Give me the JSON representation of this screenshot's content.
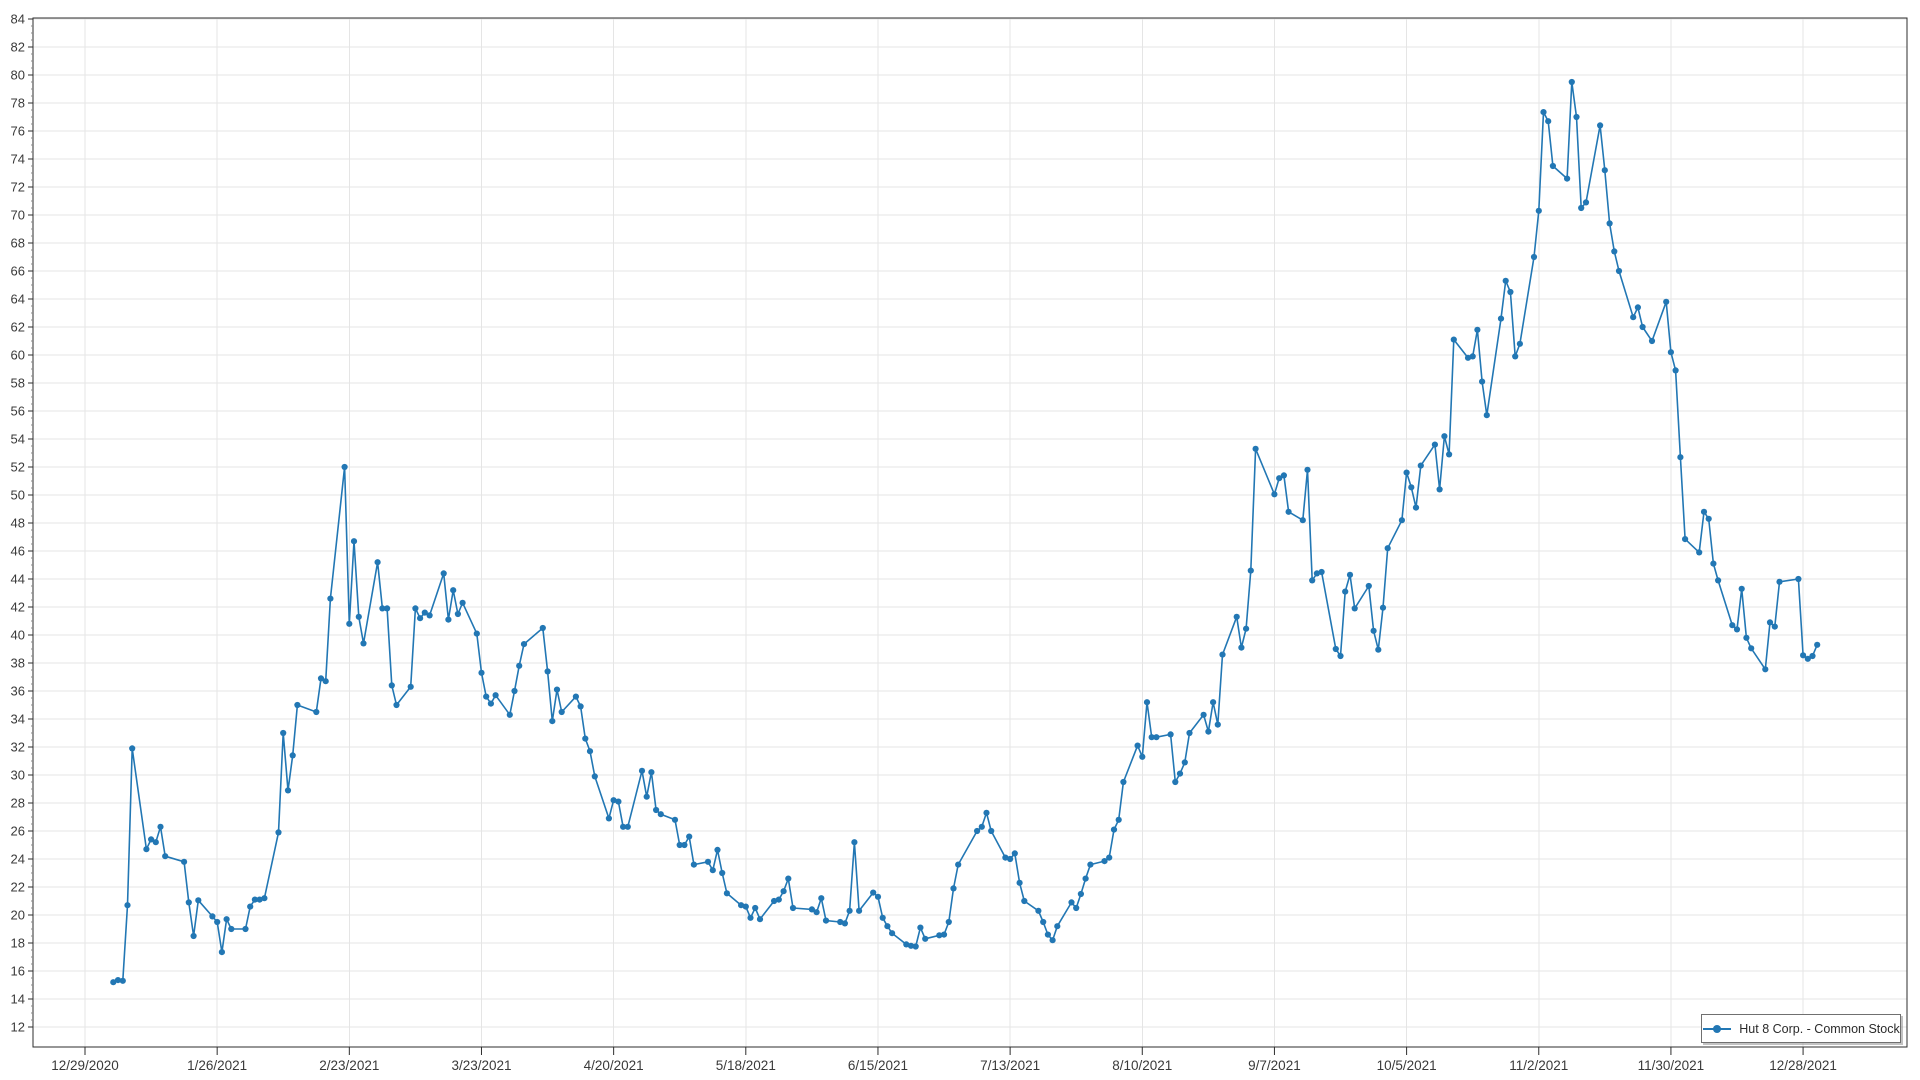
{
  "page": {
    "background_color": "#ffffff",
    "title": ""
  },
  "colors": {
    "series_blue": "#2277b4",
    "grid_line": "#e5e5e5",
    "axis_line": "#2d2d2d",
    "tick_label": "#3a3a3a"
  },
  "legend": {
    "label": "Hut 8 Corp. - Common Stock"
  },
  "chart_data": {
    "type": "line",
    "title": "",
    "xlabel": "",
    "ylabel": "",
    "legend_position": "bottom-right",
    "grid": true,
    "marker": "circle",
    "y_axis": {
      "min": 12,
      "max": 84,
      "step": 2,
      "minor_step": 0.5
    },
    "x_ticks": [
      "12/29/2020",
      "1/26/2021",
      "2/23/2021",
      "3/23/2021",
      "4/20/2021",
      "5/18/2021",
      "6/15/2021",
      "7/13/2021",
      "8/10/2021",
      "9/7/2021",
      "10/5/2021",
      "11/2/2021",
      "11/30/2021",
      "12/28/2021"
    ],
    "x_axis_start": "2020-12-29",
    "x_tick_interval_days": 28,
    "series": [
      {
        "name": "Hut 8 Corp. - Common Stock",
        "color": "#2277b4",
        "points": [
          [
            "2021-01-04",
            15.2
          ],
          [
            "2021-01-05",
            15.35
          ],
          [
            "2021-01-06",
            15.3
          ],
          [
            "2021-01-07",
            20.7
          ],
          [
            "2021-01-08",
            31.9
          ],
          [
            "2021-01-11",
            24.7
          ],
          [
            "2021-01-12",
            25.4
          ],
          [
            "2021-01-13",
            25.2
          ],
          [
            "2021-01-14",
            26.3
          ],
          [
            "2021-01-15",
            24.2
          ],
          [
            "2021-01-19",
            23.8
          ],
          [
            "2021-01-20",
            20.9
          ],
          [
            "2021-01-21",
            18.5
          ],
          [
            "2021-01-22",
            21.05
          ],
          [
            "2021-01-25",
            19.9
          ],
          [
            "2021-01-26",
            19.5
          ],
          [
            "2021-01-27",
            17.35
          ],
          [
            "2021-01-28",
            19.7
          ],
          [
            "2021-01-29",
            19.0
          ],
          [
            "2021-02-01",
            19.0
          ],
          [
            "2021-02-02",
            20.6
          ],
          [
            "2021-02-03",
            21.1
          ],
          [
            "2021-02-04",
            21.1
          ],
          [
            "2021-02-05",
            21.2
          ],
          [
            "2021-02-08",
            25.9
          ],
          [
            "2021-02-09",
            33.0
          ],
          [
            "2021-02-10",
            28.9
          ],
          [
            "2021-02-11",
            31.4
          ],
          [
            "2021-02-12",
            35.0
          ],
          [
            "2021-02-16",
            34.5
          ],
          [
            "2021-02-17",
            36.9
          ],
          [
            "2021-02-18",
            36.7
          ],
          [
            "2021-02-19",
            42.6
          ],
          [
            "2021-02-22",
            52.0
          ],
          [
            "2021-02-23",
            40.8
          ],
          [
            "2021-02-24",
            46.7
          ],
          [
            "2021-02-25",
            41.3
          ],
          [
            "2021-02-26",
            39.4
          ],
          [
            "2021-03-01",
            45.2
          ],
          [
            "2021-03-02",
            41.9
          ],
          [
            "2021-03-03",
            41.9
          ],
          [
            "2021-03-04",
            36.4
          ],
          [
            "2021-03-05",
            35.0
          ],
          [
            "2021-03-08",
            36.3
          ],
          [
            "2021-03-09",
            41.9
          ],
          [
            "2021-03-10",
            41.2
          ],
          [
            "2021-03-11",
            41.6
          ],
          [
            "2021-03-12",
            41.4
          ],
          [
            "2021-03-15",
            44.4
          ],
          [
            "2021-03-16",
            41.1
          ],
          [
            "2021-03-17",
            43.2
          ],
          [
            "2021-03-18",
            41.5
          ],
          [
            "2021-03-19",
            42.3
          ],
          [
            "2021-03-22",
            40.1
          ],
          [
            "2021-03-23",
            37.3
          ],
          [
            "2021-03-24",
            35.6
          ],
          [
            "2021-03-25",
            35.1
          ],
          [
            "2021-03-26",
            35.7
          ],
          [
            "2021-03-29",
            34.3
          ],
          [
            "2021-03-30",
            36.0
          ],
          [
            "2021-03-31",
            37.8
          ],
          [
            "2021-04-01",
            39.35
          ],
          [
            "2021-04-05",
            40.5
          ],
          [
            "2021-04-06",
            37.4
          ],
          [
            "2021-04-07",
            33.85
          ],
          [
            "2021-04-08",
            36.1
          ],
          [
            "2021-04-09",
            34.5
          ],
          [
            "2021-04-12",
            35.6
          ],
          [
            "2021-04-13",
            34.9
          ],
          [
            "2021-04-14",
            32.6
          ],
          [
            "2021-04-15",
            31.7
          ],
          [
            "2021-04-16",
            29.9
          ],
          [
            "2021-04-19",
            26.9
          ],
          [
            "2021-04-20",
            28.2
          ],
          [
            "2021-04-21",
            28.1
          ],
          [
            "2021-04-22",
            26.3
          ],
          [
            "2021-04-23",
            26.3
          ],
          [
            "2021-04-26",
            30.3
          ],
          [
            "2021-04-27",
            28.45
          ],
          [
            "2021-04-28",
            30.2
          ],
          [
            "2021-04-29",
            27.5
          ],
          [
            "2021-04-30",
            27.2
          ],
          [
            "2021-05-03",
            26.8
          ],
          [
            "2021-05-04",
            25.0
          ],
          [
            "2021-05-05",
            25.0
          ],
          [
            "2021-05-06",
            25.6
          ],
          [
            "2021-05-07",
            23.6
          ],
          [
            "2021-05-10",
            23.8
          ],
          [
            "2021-05-11",
            23.2
          ],
          [
            "2021-05-12",
            24.65
          ],
          [
            "2021-05-13",
            23.0
          ],
          [
            "2021-05-14",
            21.55
          ],
          [
            "2021-05-17",
            20.7
          ],
          [
            "2021-05-18",
            20.6
          ],
          [
            "2021-05-19",
            19.8
          ],
          [
            "2021-05-20",
            20.5
          ],
          [
            "2021-05-21",
            19.7
          ],
          [
            "2021-05-24",
            21.0
          ],
          [
            "2021-05-25",
            21.1
          ],
          [
            "2021-05-26",
            21.7
          ],
          [
            "2021-05-27",
            22.6
          ],
          [
            "2021-05-28",
            20.5
          ],
          [
            "2021-06-01",
            20.4
          ],
          [
            "2021-06-02",
            20.2
          ],
          [
            "2021-06-03",
            21.2
          ],
          [
            "2021-06-04",
            19.6
          ],
          [
            "2021-06-07",
            19.5
          ],
          [
            "2021-06-08",
            19.4
          ],
          [
            "2021-06-09",
            20.3
          ],
          [
            "2021-06-10",
            25.2
          ],
          [
            "2021-06-11",
            20.3
          ],
          [
            "2021-06-14",
            21.6
          ],
          [
            "2021-06-15",
            21.3
          ],
          [
            "2021-06-16",
            19.8
          ],
          [
            "2021-06-17",
            19.2
          ],
          [
            "2021-06-18",
            18.7
          ],
          [
            "2021-06-21",
            17.9
          ],
          [
            "2021-06-22",
            17.8
          ],
          [
            "2021-06-23",
            17.75
          ],
          [
            "2021-06-24",
            19.1
          ],
          [
            "2021-06-25",
            18.3
          ],
          [
            "2021-06-28",
            18.55
          ],
          [
            "2021-06-29",
            18.6
          ],
          [
            "2021-06-30",
            19.5
          ],
          [
            "2021-07-01",
            21.9
          ],
          [
            "2021-07-02",
            23.6
          ],
          [
            "2021-07-06",
            26.0
          ],
          [
            "2021-07-07",
            26.3
          ],
          [
            "2021-07-08",
            27.3
          ],
          [
            "2021-07-09",
            26.0
          ],
          [
            "2021-07-12",
            24.1
          ],
          [
            "2021-07-13",
            24.0
          ],
          [
            "2021-07-14",
            24.4
          ],
          [
            "2021-07-15",
            22.3
          ],
          [
            "2021-07-16",
            21.0
          ],
          [
            "2021-07-19",
            20.3
          ],
          [
            "2021-07-20",
            19.5
          ],
          [
            "2021-07-21",
            18.6
          ],
          [
            "2021-07-22",
            18.2
          ],
          [
            "2021-07-23",
            19.2
          ],
          [
            "2021-07-26",
            20.9
          ],
          [
            "2021-07-27",
            20.5
          ],
          [
            "2021-07-28",
            21.5
          ],
          [
            "2021-07-29",
            22.6
          ],
          [
            "2021-07-30",
            23.6
          ],
          [
            "2021-08-02",
            23.85
          ],
          [
            "2021-08-03",
            24.1
          ],
          [
            "2021-08-04",
            26.1
          ],
          [
            "2021-08-05",
            26.8
          ],
          [
            "2021-08-06",
            29.5
          ],
          [
            "2021-08-09",
            32.1
          ],
          [
            "2021-08-10",
            31.3
          ],
          [
            "2021-08-11",
            35.2
          ],
          [
            "2021-08-12",
            32.7
          ],
          [
            "2021-08-13",
            32.7
          ],
          [
            "2021-08-16",
            32.9
          ],
          [
            "2021-08-17",
            29.5
          ],
          [
            "2021-08-18",
            30.1
          ],
          [
            "2021-08-19",
            30.9
          ],
          [
            "2021-08-20",
            33.0
          ],
          [
            "2021-08-23",
            34.3
          ],
          [
            "2021-08-24",
            33.1
          ],
          [
            "2021-08-25",
            35.2
          ],
          [
            "2021-08-26",
            33.6
          ],
          [
            "2021-08-27",
            38.6
          ],
          [
            "2021-08-30",
            41.3
          ],
          [
            "2021-08-31",
            39.1
          ],
          [
            "2021-09-01",
            40.45
          ],
          [
            "2021-09-02",
            44.6
          ],
          [
            "2021-09-03",
            53.3
          ],
          [
            "2021-09-07",
            50.05
          ],
          [
            "2021-09-08",
            51.2
          ],
          [
            "2021-09-09",
            51.4
          ],
          [
            "2021-09-10",
            48.8
          ],
          [
            "2021-09-13",
            48.2
          ],
          [
            "2021-09-14",
            51.8
          ],
          [
            "2021-09-15",
            43.9
          ],
          [
            "2021-09-16",
            44.4
          ],
          [
            "2021-09-17",
            44.5
          ],
          [
            "2021-09-20",
            39.0
          ],
          [
            "2021-09-21",
            38.5
          ],
          [
            "2021-09-22",
            43.1
          ],
          [
            "2021-09-23",
            44.3
          ],
          [
            "2021-09-24",
            41.9
          ],
          [
            "2021-09-27",
            43.5
          ],
          [
            "2021-09-28",
            40.3
          ],
          [
            "2021-09-29",
            38.95
          ],
          [
            "2021-09-30",
            41.95
          ],
          [
            "2021-10-01",
            46.2
          ],
          [
            "2021-10-04",
            48.2
          ],
          [
            "2021-10-05",
            51.6
          ],
          [
            "2021-10-06",
            50.55
          ],
          [
            "2021-10-07",
            49.1
          ],
          [
            "2021-10-08",
            52.1
          ],
          [
            "2021-10-11",
            53.6
          ],
          [
            "2021-10-12",
            50.4
          ],
          [
            "2021-10-13",
            54.2
          ],
          [
            "2021-10-14",
            52.9
          ],
          [
            "2021-10-15",
            61.1
          ],
          [
            "2021-10-18",
            59.8
          ],
          [
            "2021-10-19",
            59.9
          ],
          [
            "2021-10-20",
            61.8
          ],
          [
            "2021-10-21",
            58.1
          ],
          [
            "2021-10-22",
            55.7
          ],
          [
            "2021-10-25",
            62.6
          ],
          [
            "2021-10-26",
            65.3
          ],
          [
            "2021-10-27",
            64.5
          ],
          [
            "2021-10-28",
            59.9
          ],
          [
            "2021-10-29",
            60.8
          ],
          [
            "2021-11-01",
            67.0
          ],
          [
            "2021-11-02",
            70.3
          ],
          [
            "2021-11-03",
            77.35
          ],
          [
            "2021-11-04",
            76.7
          ],
          [
            "2021-11-05",
            73.5
          ],
          [
            "2021-11-08",
            72.6
          ],
          [
            "2021-11-09",
            79.5
          ],
          [
            "2021-11-10",
            77.0
          ],
          [
            "2021-11-11",
            70.5
          ],
          [
            "2021-11-12",
            70.9
          ],
          [
            "2021-11-15",
            76.4
          ],
          [
            "2021-11-16",
            73.2
          ],
          [
            "2021-11-17",
            69.4
          ],
          [
            "2021-11-18",
            67.4
          ],
          [
            "2021-11-19",
            66.0
          ],
          [
            "2021-11-22",
            62.7
          ],
          [
            "2021-11-23",
            63.4
          ],
          [
            "2021-11-24",
            62.0
          ],
          [
            "2021-11-26",
            61.0
          ],
          [
            "2021-11-29",
            63.8
          ],
          [
            "2021-11-30",
            60.2
          ],
          [
            "2021-12-01",
            58.9
          ],
          [
            "2021-12-02",
            52.7
          ],
          [
            "2021-12-03",
            46.85
          ],
          [
            "2021-12-06",
            45.9
          ],
          [
            "2021-12-07",
            48.8
          ],
          [
            "2021-12-08",
            48.3
          ],
          [
            "2021-12-09",
            45.1
          ],
          [
            "2021-12-10",
            43.9
          ],
          [
            "2021-12-13",
            40.7
          ],
          [
            "2021-12-14",
            40.4
          ],
          [
            "2021-12-15",
            43.3
          ],
          [
            "2021-12-16",
            39.8
          ],
          [
            "2021-12-17",
            39.05
          ],
          [
            "2021-12-20",
            37.55
          ],
          [
            "2021-12-21",
            40.9
          ],
          [
            "2021-12-22",
            40.6
          ],
          [
            "2021-12-23",
            43.8
          ],
          [
            "2021-12-27",
            44.0
          ],
          [
            "2021-12-28",
            38.55
          ],
          [
            "2021-12-29",
            38.3
          ],
          [
            "2021-12-30",
            38.5
          ],
          [
            "2021-12-31",
            39.3
          ]
        ]
      }
    ]
  }
}
